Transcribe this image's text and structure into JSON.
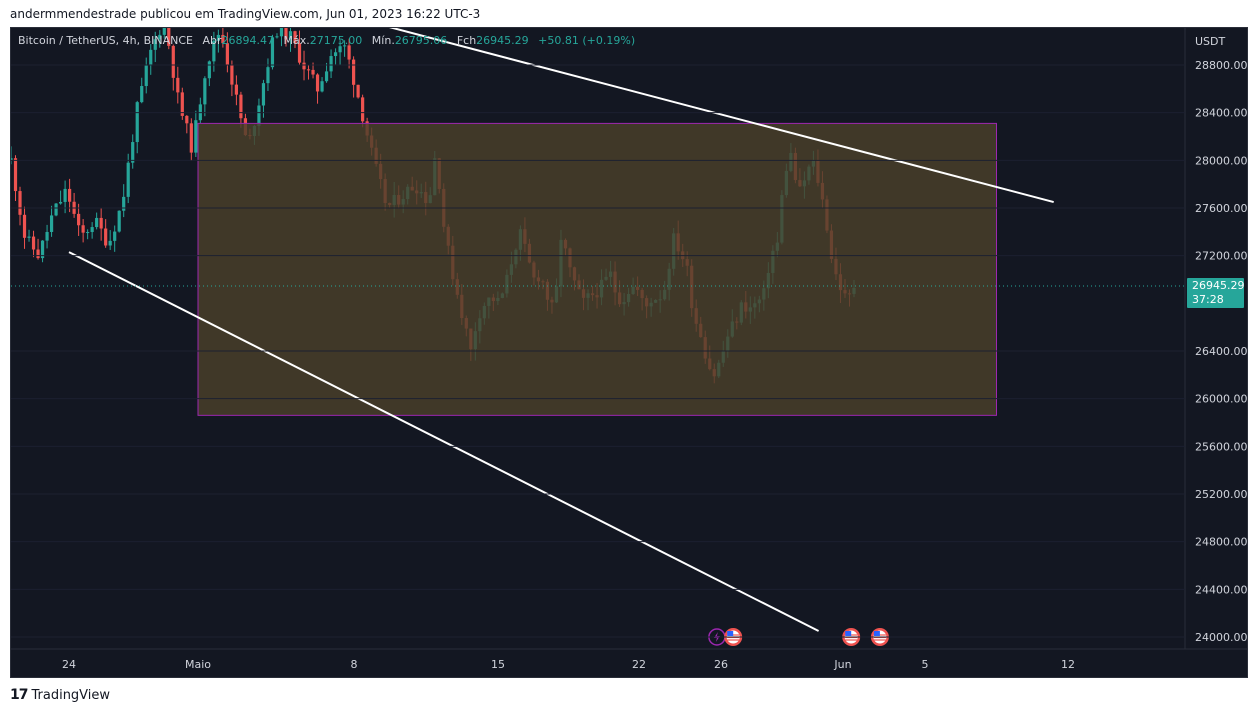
{
  "header": {
    "text": "andermmendestrade publicou em TradingView.com, Jun 01, 2023 16:22 UTC-3"
  },
  "legend": {
    "symbol": "Bitcoin / TetherUS, 4h, BINANCE",
    "open_label": "Abr",
    "open": "26894.47",
    "high_label": "Máx.",
    "high": "27175.00",
    "low_label": "Mín.",
    "low": "26795.06",
    "close_label": "Fch",
    "close": "26945.29",
    "change": "+50.81 (+0.19%)"
  },
  "footer": {
    "brand": "TradingView"
  },
  "colors": {
    "up": "#26a69a",
    "down": "#ef5350",
    "background": "#131722",
    "box_fill": "#4a3f2a",
    "box_border": "#9c27b0",
    "trendline": "#ffffff"
  },
  "chart_data": {
    "type": "candlestick",
    "symbol": "BTCUSDT",
    "timeframe": "4h",
    "currency": "USDT",
    "y_ticks": [
      "28800.00",
      "28400.00",
      "28000.00",
      "27600.00",
      "27200.00",
      "26400.00",
      "26000.00",
      "25600.00",
      "25200.00",
      "24800.00",
      "24400.00",
      "24000.00"
    ],
    "ylim": [
      23850,
      29300
    ],
    "x_ticks": [
      "24",
      "Maio",
      "8",
      "15",
      "22",
      "26",
      "Jun",
      "5",
      "12"
    ],
    "last_price": "26945.29",
    "countdown": "37:28",
    "price_path": [
      [
        0,
        28000
      ],
      [
        2,
        27350
      ],
      [
        4,
        27200
      ],
      [
        6,
        27550
      ],
      [
        8,
        27750
      ],
      [
        10,
        27350
      ],
      [
        12,
        27500
      ],
      [
        14,
        27300
      ],
      [
        16,
        27650
      ],
      [
        18,
        28400
      ],
      [
        20,
        28900
      ],
      [
        22,
        29200
      ],
      [
        24,
        28500
      ],
      [
        26,
        28100
      ],
      [
        28,
        28800
      ],
      [
        30,
        29100
      ],
      [
        32,
        28600
      ],
      [
        34,
        28100
      ],
      [
        36,
        28600
      ],
      [
        38,
        29100
      ],
      [
        40,
        29050
      ],
      [
        42,
        28800
      ],
      [
        44,
        28600
      ],
      [
        46,
        28900
      ],
      [
        48,
        28950
      ],
      [
        50,
        28500
      ],
      [
        52,
        28000
      ],
      [
        54,
        27600
      ],
      [
        56,
        27700
      ],
      [
        58,
        27800
      ],
      [
        60,
        27650
      ],
      [
        61,
        28100
      ],
      [
        62,
        27500
      ],
      [
        63,
        27150
      ],
      [
        64,
        26900
      ],
      [
        65,
        26650
      ],
      [
        66,
        26400
      ],
      [
        67,
        26700
      ],
      [
        68,
        26800
      ],
      [
        69,
        26850
      ],
      [
        70,
        26800
      ],
      [
        71,
        26950
      ],
      [
        72,
        27200
      ],
      [
        73,
        27400
      ],
      [
        74,
        27200
      ],
      [
        75,
        27000
      ],
      [
        76,
        27050
      ],
      [
        77,
        26850
      ],
      [
        78,
        26700
      ],
      [
        79,
        27400
      ],
      [
        80,
        27100
      ],
      [
        81,
        26950
      ],
      [
        82,
        26800
      ],
      [
        83,
        26850
      ],
      [
        84,
        26900
      ],
      [
        85,
        26950
      ],
      [
        86,
        27050
      ],
      [
        87,
        26850
      ],
      [
        88,
        26850
      ],
      [
        89,
        26950
      ],
      [
        90,
        26900
      ],
      [
        91,
        26750
      ],
      [
        92,
        26850
      ],
      [
        93,
        26850
      ],
      [
        94,
        26950
      ],
      [
        95,
        27350
      ],
      [
        96,
        27250
      ],
      [
        97,
        27100
      ],
      [
        98,
        26700
      ],
      [
        99,
        26550
      ],
      [
        100,
        26300
      ],
      [
        101,
        26200
      ],
      [
        102,
        26350
      ],
      [
        103,
        26550
      ],
      [
        104,
        26650
      ],
      [
        105,
        26800
      ],
      [
        106,
        26750
      ],
      [
        107,
        26800
      ],
      [
        108,
        26850
      ],
      [
        109,
        27200
      ],
      [
        110,
        27300
      ],
      [
        111,
        27900
      ],
      [
        112,
        28050
      ],
      [
        113,
        27700
      ],
      [
        114,
        27850
      ],
      [
        115,
        28000
      ],
      [
        116,
        27800
      ],
      [
        117,
        27500
      ],
      [
        118,
        27100
      ],
      [
        119,
        26950
      ],
      [
        120,
        26800
      ],
      [
        121,
        26950
      ]
    ],
    "price_ranges": [
      {
        "x_start": 1,
        "x_end": 7.5,
        "y_low": 25860,
        "y_high": 28310
      }
    ],
    "trendlines": [
      {
        "x1": 0,
        "y1": 27230,
        "x2": 5.8,
        "y2": 24050
      },
      {
        "x1": 1.7,
        "y1": 29300,
        "x2": 7.9,
        "y2": 27650
      }
    ],
    "events": [
      {
        "x": 4.95,
        "icon": "lightning-icon"
      },
      {
        "x": 5.1,
        "icon": "us-flag-icon"
      },
      {
        "x": 6.1,
        "icon": "us-flag-icon"
      },
      {
        "x": 6.45,
        "icon": "us-flag-icon"
      }
    ]
  }
}
